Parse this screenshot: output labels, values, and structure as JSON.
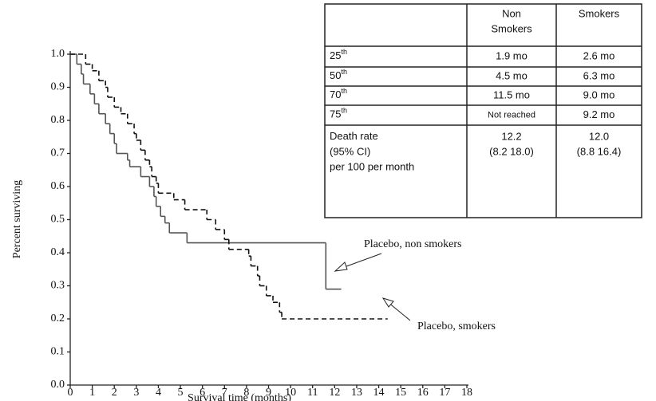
{
  "chart_data": {
    "type": "step",
    "xlabel": "Survival time (months)",
    "ylabel": "Percent surviving",
    "xlim": [
      0,
      18
    ],
    "ylim": [
      0,
      1
    ],
    "xticks": [
      0,
      1,
      2,
      3,
      4,
      5,
      6,
      7,
      8,
      9,
      10,
      11,
      12,
      13,
      14,
      15,
      16,
      17,
      18
    ],
    "yticks": [
      {
        "value": 0,
        "label": "0.0"
      },
      {
        "value": 0.1,
        "label": "0.1"
      },
      {
        "value": 0.2,
        "label": "0.2"
      },
      {
        "value": 0.3,
        "label": "0.3"
      },
      {
        "value": 0.4,
        "label": "0.4"
      },
      {
        "value": 0.5,
        "label": "0.5"
      },
      {
        "value": 0.6,
        "label": "0.6"
      },
      {
        "value": 0.7,
        "label": "0.7"
      },
      {
        "value": 0.8,
        "label": "0.8"
      },
      {
        "value": 0.9,
        "label": "0.9"
      },
      {
        "value": 1,
        "label": "1.0"
      }
    ],
    "series": [
      {
        "name": "Placebo, non smokers",
        "color": "#555555",
        "dash": "none",
        "x": [
          0,
          0.3,
          0.5,
          0.6,
          0.9,
          1.1,
          1.3,
          1.6,
          1.8,
          2.0,
          2.1,
          2.6,
          2.7,
          3.2,
          3.6,
          3.8,
          3.9,
          4.1,
          4.3,
          4.5,
          5.3,
          11.6,
          12.3
        ],
        "values": [
          1.0,
          0.97,
          0.94,
          0.91,
          0.88,
          0.85,
          0.82,
          0.79,
          0.76,
          0.73,
          0.7,
          0.68,
          0.66,
          0.63,
          0.6,
          0.57,
          0.54,
          0.51,
          0.49,
          0.46,
          0.43,
          0.29,
          0.29
        ]
      },
      {
        "name": "Placebo, smokers",
        "color": "#111111",
        "dash": "6 4",
        "x": [
          0,
          0.7,
          1.0,
          1.3,
          1.6,
          1.7,
          2.0,
          2.3,
          2.6,
          2.9,
          3.0,
          3.2,
          3.4,
          3.6,
          3.7,
          3.9,
          4.0,
          4.7,
          5.2,
          6.2,
          6.6,
          7.0,
          7.2,
          8.1,
          8.2,
          8.5,
          8.6,
          8.9,
          9.2,
          9.5,
          9.6,
          14.4
        ],
        "values": [
          1.0,
          0.97,
          0.95,
          0.92,
          0.9,
          0.87,
          0.84,
          0.82,
          0.79,
          0.76,
          0.74,
          0.71,
          0.68,
          0.66,
          0.63,
          0.61,
          0.58,
          0.56,
          0.53,
          0.5,
          0.47,
          0.44,
          0.41,
          0.39,
          0.36,
          0.33,
          0.3,
          0.27,
          0.25,
          0.22,
          0.2,
          0.2
        ]
      }
    ]
  },
  "table": {
    "columns": [
      [
        "Non",
        "Smokers"
      ],
      [
        "Smokers"
      ]
    ],
    "rows": [
      {
        "label": [
          "25"
        ],
        "sup": "th",
        "cells": [
          [
            "1.9 mo"
          ],
          [
            "2.6 mo"
          ]
        ]
      },
      {
        "label": [
          "50"
        ],
        "sup": "th",
        "cells": [
          [
            "4.5 mo"
          ],
          [
            "6.3 mo"
          ]
        ]
      },
      {
        "label": [
          "70"
        ],
        "sup": "th",
        "cells": [
          [
            "11.5 mo"
          ],
          [
            "9.0 mo"
          ]
        ]
      },
      {
        "label": [
          "75"
        ],
        "sup": "th",
        "cells": [
          [
            "Not reached"
          ],
          [
            "9.2 mo"
          ]
        ]
      },
      {
        "label": [
          "Death rate",
          "(95% CI)",
          "per 100 per month"
        ],
        "sup": null,
        "cells": [
          [
            "12.2",
            "(8.2 18.0)"
          ],
          [
            "12.0",
            "(8.8 16.4)"
          ]
        ]
      }
    ]
  }
}
